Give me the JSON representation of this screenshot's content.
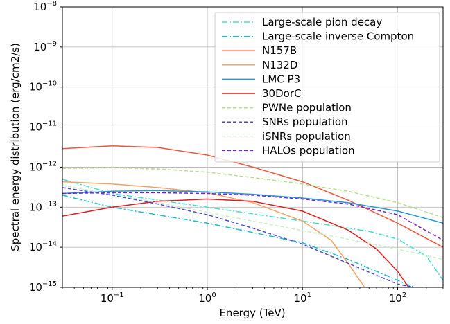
{
  "chart_data": {
    "type": "line",
    "xlabel": "Energy (TeV)",
    "ylabel": "Spectral energy distribution (erg/cm2/s)",
    "xscale": "log",
    "yscale": "log",
    "xlim": [
      0.03,
      300
    ],
    "ylim": [
      1e-15,
      1e-08
    ],
    "grid": true,
    "legend_position": "top-right",
    "x_ticks": [
      {
        "value": 0.1,
        "base": "10",
        "exp": "−1"
      },
      {
        "value": 1,
        "base": "10",
        "exp": "0"
      },
      {
        "value": 10,
        "base": "10",
        "exp": "1"
      },
      {
        "value": 100,
        "base": "10",
        "exp": "2"
      }
    ],
    "y_ticks": [
      {
        "value": 1e-15,
        "base": "10",
        "exp": "−15"
      },
      {
        "value": 1e-14,
        "base": "10",
        "exp": "−14"
      },
      {
        "value": 1e-13,
        "base": "10",
        "exp": "−13"
      },
      {
        "value": 1e-12,
        "base": "10",
        "exp": "−12"
      },
      {
        "value": 1e-11,
        "base": "10",
        "exp": "−11"
      },
      {
        "value": 1e-10,
        "base": "10",
        "exp": "−10"
      },
      {
        "value": 1e-09,
        "base": "10",
        "exp": "−9"
      },
      {
        "value": 1e-08,
        "base": "10",
        "exp": "−8"
      }
    ],
    "series": [
      {
        "name": "Large-scale pion decay",
        "color": "#40e0d0",
        "dash": "dashdot",
        "x": [
          0.03,
          0.1,
          1,
          10,
          50,
          100,
          200,
          300
        ],
        "y": [
          5e-13,
          2.2e-13,
          1e-13,
          4.5e-14,
          2.5e-14,
          1.6e-14,
          6e-15,
          1.5e-15
        ]
      },
      {
        "name": "Large-scale inverse Compton",
        "color": "#17becf",
        "dash": "dashdot",
        "x": [
          0.03,
          0.1,
          1,
          10,
          30,
          60,
          100,
          150
        ],
        "y": [
          2e-13,
          1e-13,
          4e-14,
          1.3e-14,
          5e-15,
          2.5e-15,
          1.5e-15,
          1e-15
        ]
      },
      {
        "name": "N157B",
        "color": "#ef553b",
        "dash": "solid",
        "x": [
          0.03,
          0.1,
          0.3,
          1,
          3,
          10,
          30,
          100,
          300
        ],
        "y": [
          2.9e-12,
          3.4e-12,
          3.1e-12,
          2e-12,
          1e-12,
          4.3e-13,
          1.5e-13,
          4e-14,
          1e-14
        ]
      },
      {
        "name": "N132D",
        "color": "#f4a261",
        "dash": "solid",
        "x": [
          0.03,
          0.1,
          0.3,
          1,
          3,
          10,
          20,
          30,
          45
        ],
        "y": [
          4.3e-13,
          3.8e-13,
          3.1e-13,
          2.3e-13,
          1.3e-13,
          4.5e-14,
          1.5e-14,
          4e-15,
          1e-15
        ]
      },
      {
        "name": "LMC P3",
        "color": "#1f9ad6",
        "dash": "solid",
        "x": [
          0.03,
          0.1,
          0.3,
          1,
          3,
          10,
          30,
          100,
          300
        ],
        "y": [
          2.2e-13,
          2.5e-13,
          2.6e-13,
          2.4e-13,
          2.1e-13,
          1.7e-13,
          1.3e-13,
          8e-14,
          4e-14
        ]
      },
      {
        "name": "30DorC",
        "color": "#e31a1c",
        "dash": "solid",
        "x": [
          0.03,
          0.1,
          0.3,
          1,
          3,
          10,
          30,
          60,
          100,
          130
        ],
        "y": [
          6e-14,
          1e-13,
          1.4e-13,
          1.6e-13,
          1.4e-13,
          8e-14,
          2.7e-14,
          9e-15,
          2.5e-15,
          1e-15
        ]
      },
      {
        "name": "PWNe population",
        "color": "#b8de8c",
        "dash": "dashed",
        "x": [
          0.03,
          0.1,
          0.3,
          1,
          3,
          10,
          30,
          100,
          300
        ],
        "y": [
          9.3e-13,
          9.7e-13,
          9e-13,
          7.5e-13,
          5.5e-13,
          3.8e-13,
          2.5e-13,
          1.3e-13,
          5.5e-14
        ]
      },
      {
        "name": "SNRs population",
        "color": "#4b4bd8",
        "dash": "dashed",
        "x": [
          0.03,
          0.1,
          0.3,
          1,
          3,
          10,
          30,
          60,
          100,
          150
        ],
        "y": [
          3.1e-13,
          2e-13,
          1.2e-13,
          6.5e-14,
          3e-14,
          1.2e-14,
          4e-15,
          2e-15,
          1.2e-15,
          1e-15
        ]
      },
      {
        "name": "iSNRs population",
        "color": "#c7f0c7",
        "dash": "dashed",
        "x": [
          0.03,
          0.1,
          0.3,
          1,
          3,
          10,
          30,
          100,
          300
        ],
        "y": [
          3.5e-13,
          2.1e-13,
          1.3e-13,
          7.5e-14,
          4.5e-14,
          2.6e-14,
          1.6e-14,
          9e-15,
          5e-15
        ]
      },
      {
        "name": "HALOs population",
        "color": "#7b22d6",
        "dash": "dashed",
        "x": [
          0.03,
          0.1,
          0.3,
          1,
          3,
          10,
          30,
          100,
          300
        ],
        "y": [
          2.2e-13,
          2.3e-13,
          2.3e-13,
          2.2e-13,
          2e-13,
          1.6e-13,
          1.2e-13,
          6.5e-14,
          1.5e-14
        ]
      }
    ]
  }
}
